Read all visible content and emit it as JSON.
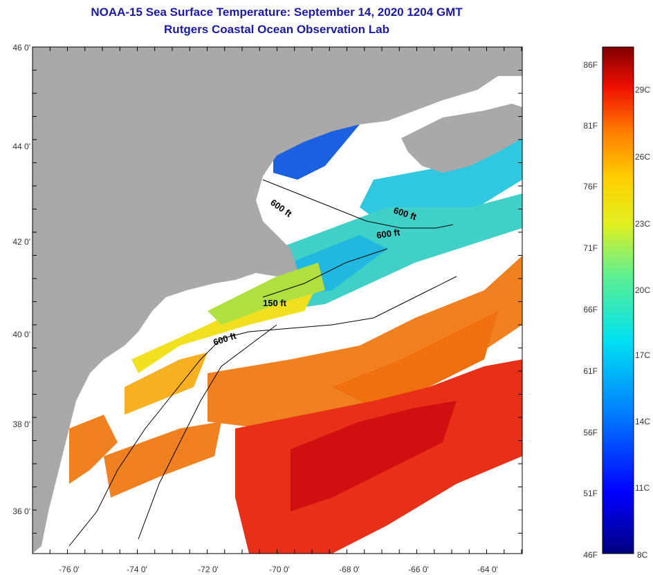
{
  "title": "NOAA-15 Sea Surface Temperature:  September 14, 2020 1204 GMT",
  "subtitle": "Rutgers Coastal Ocean Observation Lab",
  "colors": {
    "title": "#1a1aa6",
    "land": "#a9a9a9",
    "clouds": "#ffffff"
  },
  "latitude_labels": [
    "46 0'",
    "44 0'",
    "42 0'",
    "40 0'",
    "38 0'",
    "36 0'"
  ],
  "longitude_labels": [
    "-76 0'",
    "-74 0'",
    "-72 0'",
    "-70 0'",
    "-68 0'",
    "-66 0'",
    "-64 0'"
  ],
  "contour_labels": [
    "600 ft",
    "600 ft",
    "600 ft",
    "150 ft",
    "600 ft"
  ],
  "colorbar": {
    "fahrenheit_labels": [
      "86F",
      "81F",
      "76F",
      "71F",
      "66F",
      "61F",
      "56F",
      "51F",
      "46F"
    ],
    "celsius_labels": [
      "29C",
      "26C",
      "23C",
      "20C",
      "17C",
      "14C",
      "11C",
      "8C"
    ]
  }
}
